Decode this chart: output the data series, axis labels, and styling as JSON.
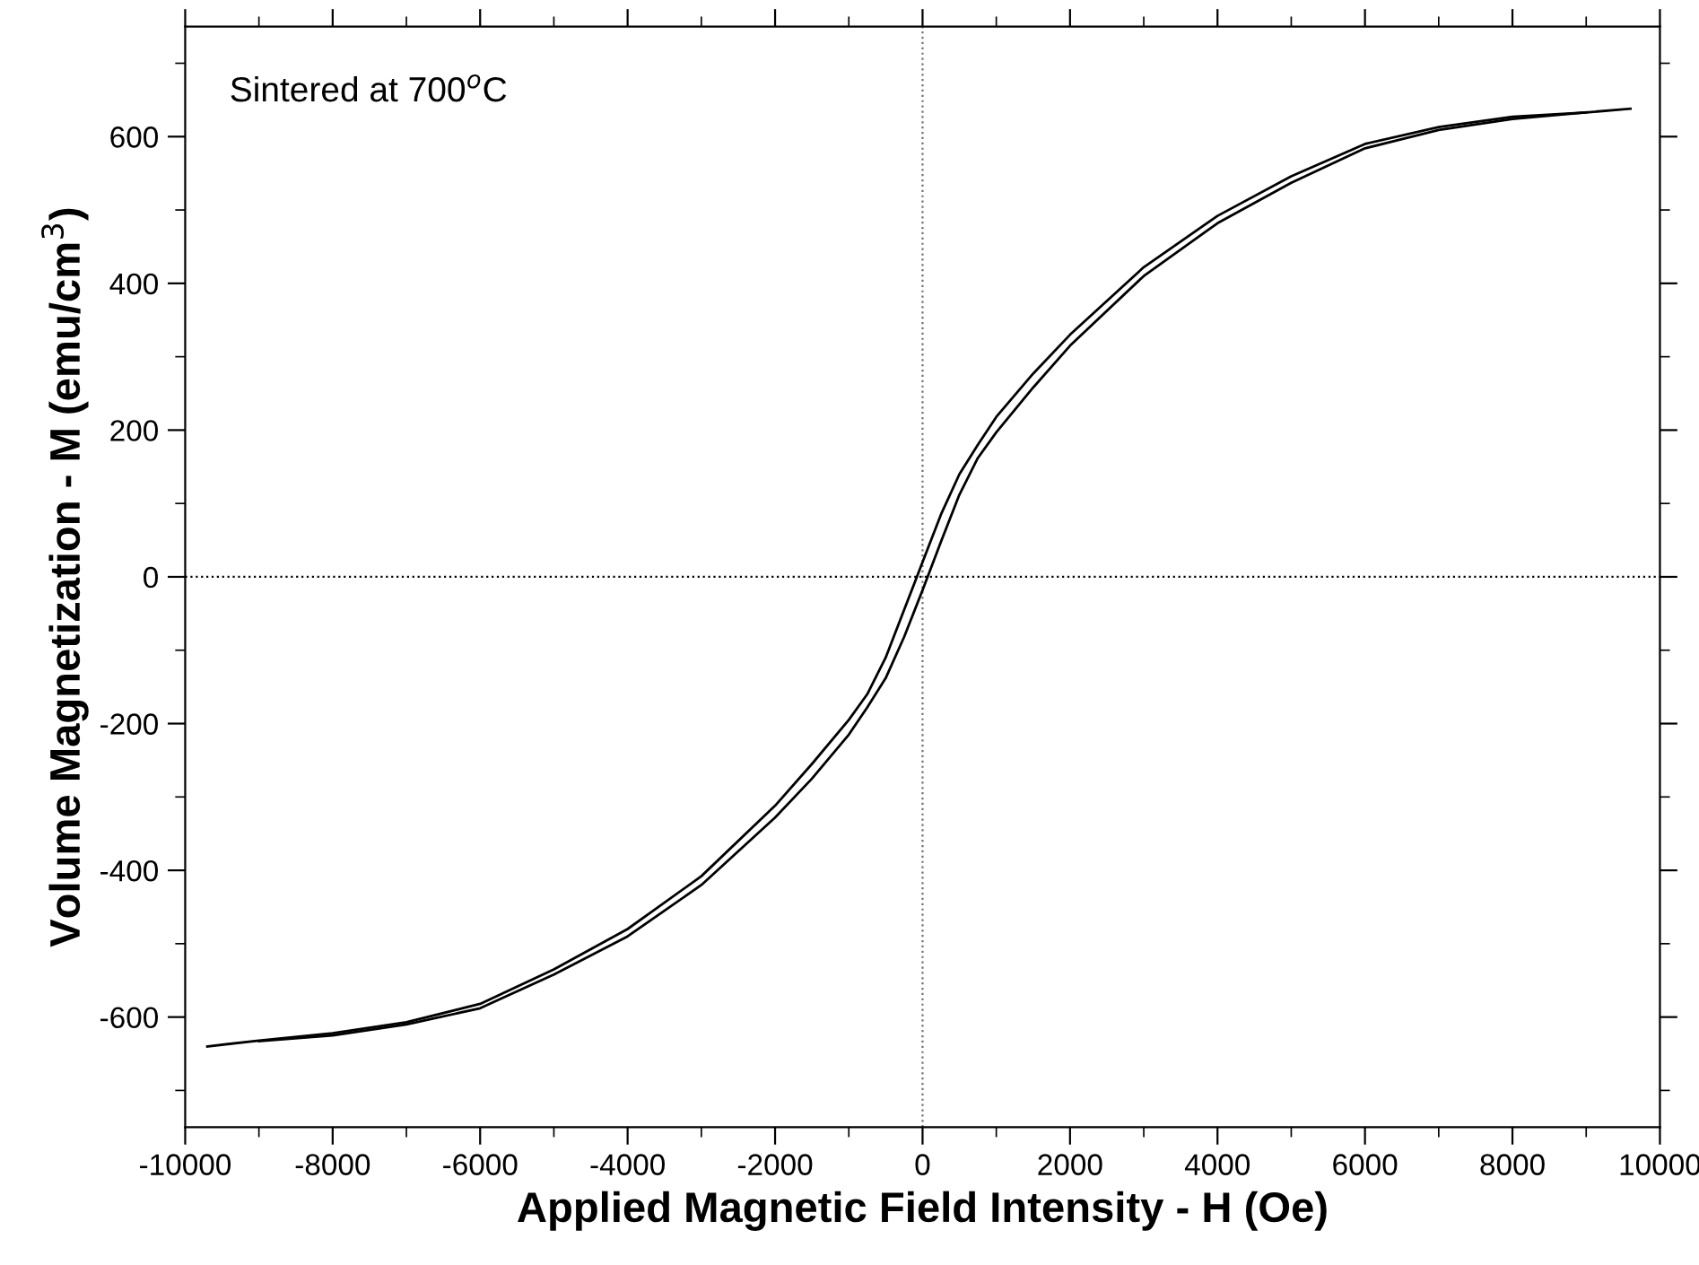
{
  "chart_data": {
    "type": "line",
    "xlabel": "Applied Magnetic Field Intensity - H (Oe)",
    "ylabel": "Volume Magnetization - M (emu/cm$^{3}$)",
    "annotations": [
      "Sintered at 700$^{o}$C"
    ],
    "series": [
      {
        "color": "#000000",
        "x": [
          9600,
          9000,
          8000,
          7000,
          6000,
          5000,
          4000,
          3000,
          2000,
          1500,
          1000,
          750,
          500,
          250,
          0,
          -250,
          -500,
          -750,
          -1000,
          -1500,
          -2000,
          -3000,
          -4000,
          -5000,
          -6000,
          -7000,
          -8000,
          -9000,
          -9700
        ],
        "values": [
          638,
          633,
          627,
          613,
          590,
          546,
          492,
          422,
          330,
          277,
          218,
          180,
          140,
          85,
          20,
          -45,
          -110,
          -160,
          -195,
          -255,
          -312,
          -408,
          -480,
          -535,
          -582,
          -607,
          -622,
          -632,
          -640
        ]
      },
      {
        "color": "#000000",
        "x": [
          -9000,
          -8000,
          -7000,
          -6000,
          -5000,
          -4000,
          -3000,
          -2000,
          -1500,
          -1000,
          -750,
          -500,
          -250,
          0,
          250,
          500,
          750,
          1000,
          1500,
          2000,
          3000,
          4000,
          5000,
          6000,
          7000,
          8000,
          9000
        ],
        "values": [
          -633,
          -625,
          -610,
          -588,
          -542,
          -490,
          -420,
          -328,
          -275,
          -215,
          -178,
          -138,
          -82,
          -18,
          48,
          112,
          162,
          197,
          258,
          315,
          410,
          482,
          537,
          584,
          609,
          624,
          633
        ]
      }
    ],
    "xlim": [
      -10000,
      10000
    ],
    "ylim": [
      -750,
      750
    ],
    "xticks": [
      -10000,
      {
        "value": -9000,
        "label": null
      },
      -8000,
      {
        "value": -7000,
        "label": null
      },
      -6000,
      {
        "value": -5000,
        "label": null
      },
      -4000,
      {
        "value": -3000,
        "label": null
      },
      -2000,
      {
        "value": -1000,
        "label": null
      },
      0,
      {
        "value": 1000,
        "label": null
      },
      2000,
      {
        "value": 3000,
        "label": null
      },
      4000,
      {
        "value": 5000,
        "label": null
      },
      6000,
      {
        "value": 7000,
        "label": null
      },
      8000,
      {
        "value": 9000,
        "label": null
      },
      10000
    ],
    "yticks": [
      {
        "value": -700,
        "label": null
      },
      -600,
      {
        "value": -500,
        "label": null
      },
      -400,
      {
        "value": -300,
        "label": null
      },
      -200,
      {
        "value": -100,
        "label": null
      },
      0,
      {
        "value": 100,
        "label": null
      },
      200,
      {
        "value": 300,
        "label": null
      },
      400,
      {
        "value": 500,
        "label": null
      },
      600,
      {
        "value": 700,
        "label": null
      }
    ],
    "ref_lines": [
      {
        "axis": "x",
        "value": 0,
        "line_style": "dotted",
        "color": "#707070"
      },
      {
        "axis": "y",
        "value": 0,
        "line_style": "dotted",
        "color": "#000000"
      }
    ],
    "grid": false,
    "legend": false,
    "marker": "none",
    "line_style": "solid"
  }
}
